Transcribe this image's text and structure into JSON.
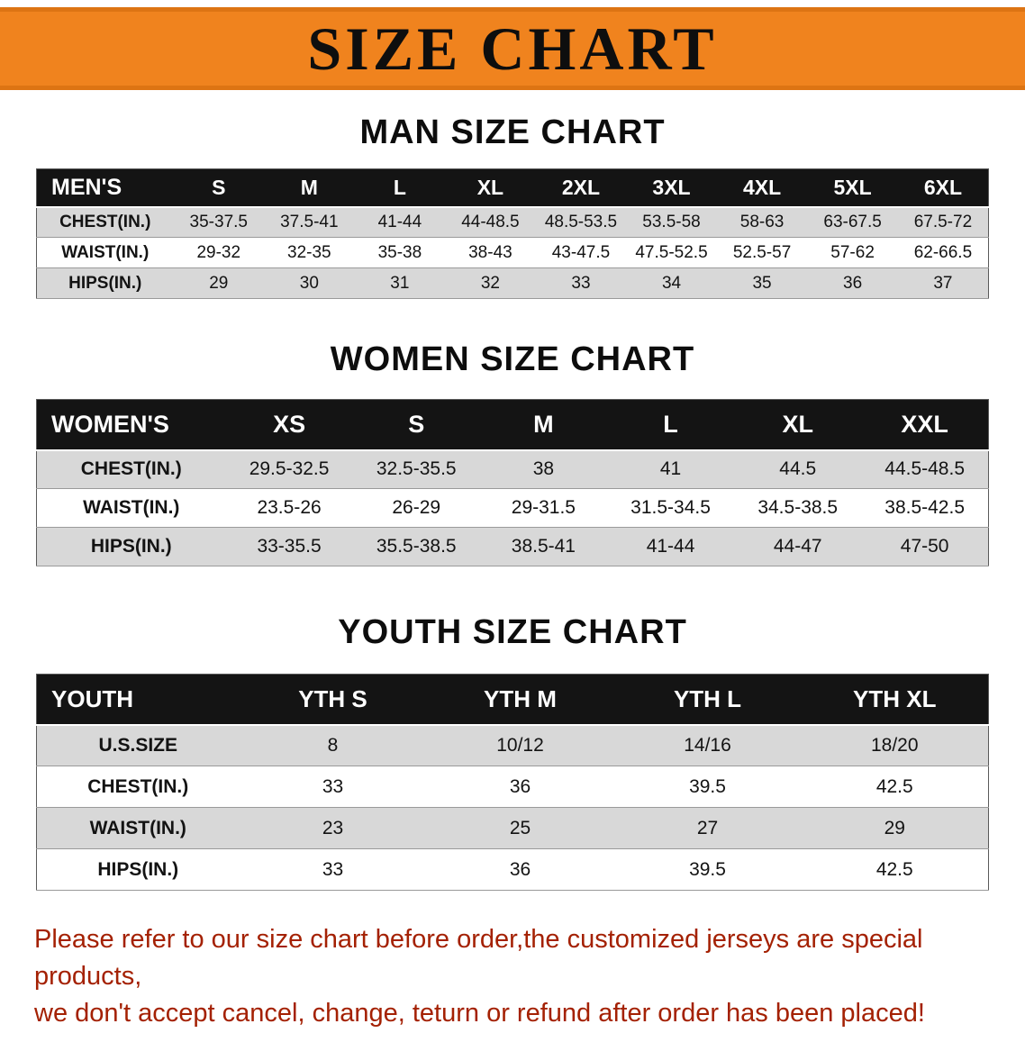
{
  "banner": {
    "title": "SIZE CHART"
  },
  "men": {
    "heading": "MAN SIZE CHART",
    "header": [
      "MEN'S",
      "S",
      "M",
      "L",
      "XL",
      "2XL",
      "3XL",
      "4XL",
      "5XL",
      "6XL"
    ],
    "rows": [
      {
        "label": "CHEST(IN.)",
        "values": [
          "35-37.5",
          "37.5-41",
          "41-44",
          "44-48.5",
          "48.5-53.5",
          "53.5-58",
          "58-63",
          "63-67.5",
          "67.5-72"
        ]
      },
      {
        "label": "WAIST(IN.)",
        "values": [
          "29-32",
          "32-35",
          "35-38",
          "38-43",
          "43-47.5",
          "47.5-52.5",
          "52.5-57",
          "57-62",
          "62-66.5"
        ]
      },
      {
        "label": "HIPS(IN.)",
        "values": [
          "29",
          "30",
          "31",
          "32",
          "33",
          "34",
          "35",
          "36",
          "37"
        ]
      }
    ]
  },
  "women": {
    "heading": "WOMEN SIZE CHART",
    "header": [
      "WOMEN'S",
      "XS",
      "S",
      "M",
      "L",
      "XL",
      "XXL"
    ],
    "rows": [
      {
        "label": "CHEST(IN.)",
        "values": [
          "29.5-32.5",
          "32.5-35.5",
          "38",
          "41",
          "44.5",
          "44.5-48.5"
        ]
      },
      {
        "label": "WAIST(IN.)",
        "values": [
          "23.5-26",
          "26-29",
          "29-31.5",
          "31.5-34.5",
          "34.5-38.5",
          "38.5-42.5"
        ]
      },
      {
        "label": "HIPS(IN.)",
        "values": [
          "33-35.5",
          "35.5-38.5",
          "38.5-41",
          "41-44",
          "44-47",
          "47-50"
        ]
      }
    ]
  },
  "youth": {
    "heading": "YOUTH SIZE CHART",
    "header": [
      "YOUTH",
      "YTH S",
      "YTH M",
      "YTH L",
      "YTH XL"
    ],
    "rows": [
      {
        "label": "U.S.SIZE",
        "values": [
          "8",
          "10/12",
          "14/16",
          "18/20"
        ]
      },
      {
        "label": "CHEST(IN.)",
        "values": [
          "33",
          "36",
          "39.5",
          "42.5"
        ]
      },
      {
        "label": "WAIST(IN.)",
        "values": [
          "23",
          "25",
          "27",
          "29"
        ]
      },
      {
        "label": "HIPS(IN.)",
        "values": [
          "33",
          "36",
          "39.5",
          "42.5"
        ]
      }
    ]
  },
  "disclaimer": {
    "line1": "Please refer to our size chart before order,the customized jerseys are special products,",
    "line2": "we don't accept cancel, change, teturn or refund after order has been placed!"
  },
  "colors": {
    "banner_orange": "#f0831e",
    "header_black": "#141414",
    "row_gray": "#d8d8d8",
    "disclaimer_red": "#a42103"
  }
}
